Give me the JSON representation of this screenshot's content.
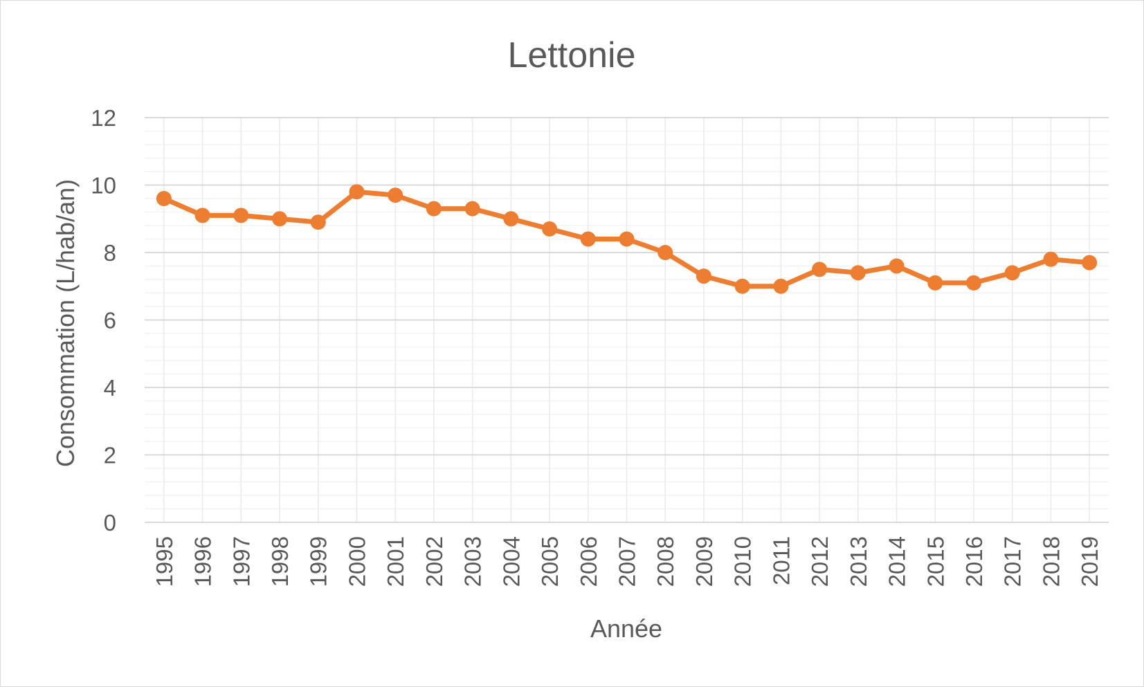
{
  "chart_data": {
    "type": "line",
    "title": "Lettonie",
    "xlabel": "Année",
    "ylabel": "Consommation (L/hab/an)",
    "ylim": [
      0,
      12
    ],
    "y_ticks": [
      "0",
      "2",
      "4",
      "6",
      "8",
      "10",
      "12"
    ],
    "x": [
      "1995",
      "1996",
      "1997",
      "1998",
      "1999",
      "2000",
      "2001",
      "2002",
      "2003",
      "2004",
      "2005",
      "2006",
      "2007",
      "2008",
      "2009",
      "2010",
      "2011",
      "2012",
      "2013",
      "2014",
      "2015",
      "2016",
      "2017",
      "2018",
      "2019"
    ],
    "series": [
      {
        "values": [
          9.6,
          9.1,
          9.1,
          9.0,
          8.9,
          9.8,
          9.7,
          9.3,
          9.3,
          9.0,
          8.7,
          8.4,
          8.4,
          8.0,
          7.3,
          7.0,
          7.0,
          7.5,
          7.4,
          7.6,
          7.1,
          7.1,
          7.4,
          7.8,
          7.7
        ],
        "color": "#ED7D31"
      }
    ],
    "grid": "major and minor horizontal, vertical at categories",
    "legend": "none"
  }
}
